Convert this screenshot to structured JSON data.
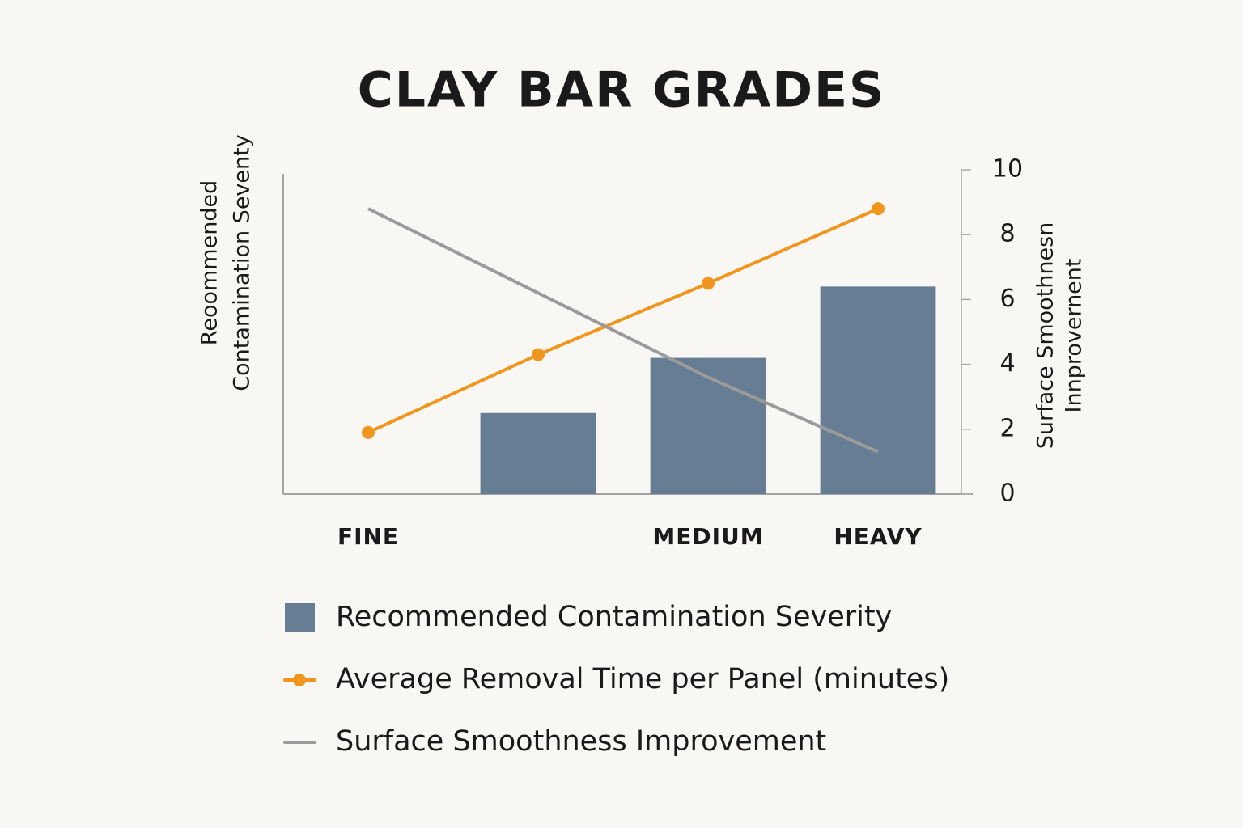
{
  "chart_data": {
    "type": "bar",
    "title": "CLAY BAR GRADES",
    "y_label": [
      "Reoommended",
      "Contamination Seventy"
    ],
    "y_label_right": [
      "Surface Smoothnesn",
      "Innprovernent"
    ],
    "categories": [
      "FINE",
      null,
      "MEDIUM",
      "HEAVY"
    ],
    "series": [
      {
        "name": "Recommended Contamination Severity",
        "type": "bar",
        "color": "#677d94",
        "values": [
          null,
          2.5,
          4.2,
          6.4
        ]
      },
      {
        "name": "Average Removal Time per Panel (minutes)",
        "type": "line",
        "markers": true,
        "color": "#f0961e",
        "values": [
          1.9,
          4.3,
          6.5,
          8.8
        ]
      },
      {
        "name": "Surface Smoothness Improvement",
        "type": "line",
        "markers": false,
        "color": "#9b9b9b",
        "values": [
          8.8,
          6.2,
          3.6,
          1.3
        ]
      }
    ],
    "ylim": [
      0,
      10
    ],
    "yticks": [
      0,
      2,
      4,
      6,
      8,
      10
    ],
    "tick_side": "right",
    "legend": "bottom"
  }
}
